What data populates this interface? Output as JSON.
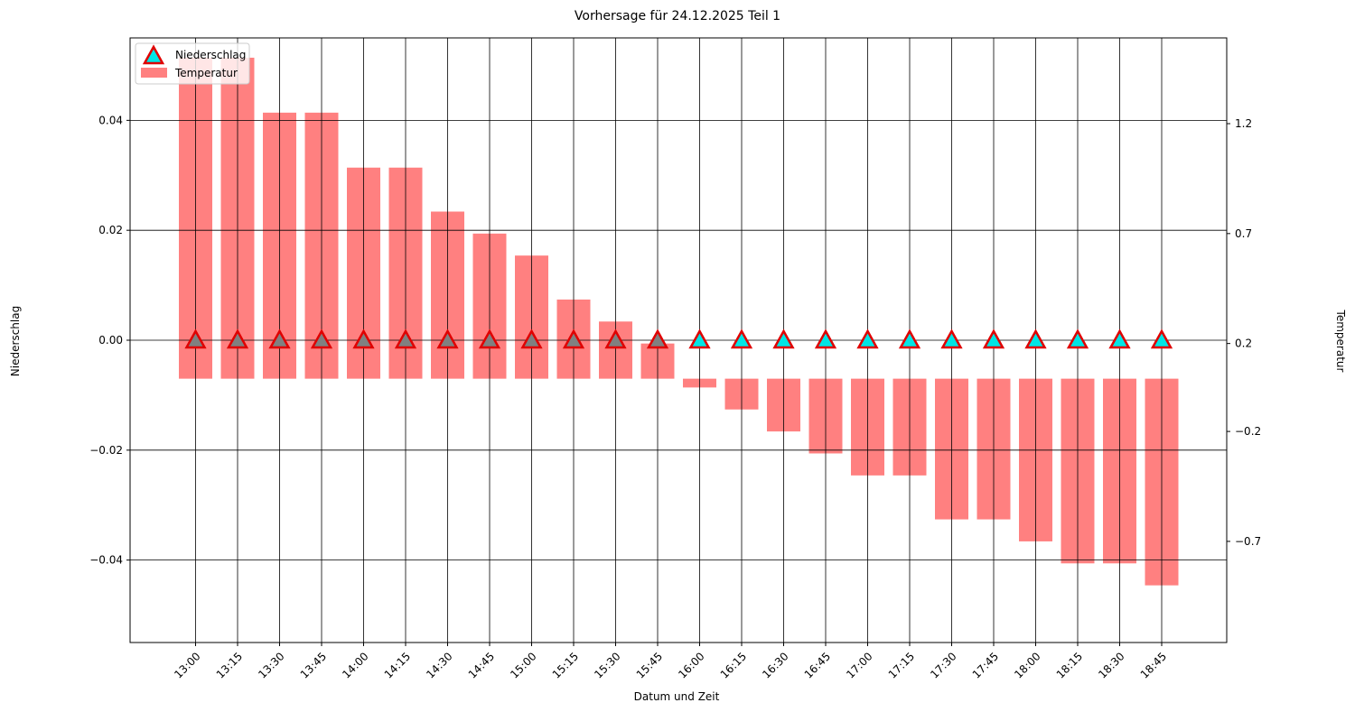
{
  "chart_data": {
    "type": "bar",
    "title": "Vorhersage für 24.12.2025 Teil 1",
    "xlabel": "Datum und Zeit",
    "ylabel_left": "Niederschlag",
    "ylabel_right": "Temperatur",
    "categories": [
      "13:00",
      "13:15",
      "13:30",
      "13:45",
      "14:00",
      "14:15",
      "14:30",
      "14:45",
      "15:00",
      "15:15",
      "15:30",
      "15:45",
      "16:00",
      "16:15",
      "16:30",
      "16:45",
      "17:00",
      "17:15",
      "17:30",
      "17:45",
      "18:00",
      "18:15",
      "18:30",
      "18:45"
    ],
    "left_axis": {
      "ylim": [
        -0.055,
        0.055
      ],
      "ticks": [
        0.04,
        0.02,
        0.0,
        -0.02,
        -0.04
      ],
      "tick_labels": [
        "0.04",
        "0.02",
        "0.00",
        "−0.02",
        "−0.04"
      ]
    },
    "right_axis": {
      "ylim": [
        -1.16,
        1.59
      ],
      "bar_base": 0.04,
      "ticks": [
        1.2,
        0.7,
        0.2,
        -0.2,
        -0.7
      ],
      "tick_labels": [
        "1.2",
        "0.7",
        "0.2",
        "−0.2",
        "−0.7"
      ]
    },
    "grid": true,
    "legend": "top-left",
    "series": [
      {
        "name": "Niederschlag",
        "kind": "triangle-marker",
        "axis": "left",
        "values": [
          0,
          0,
          0,
          0,
          0,
          0,
          0,
          0,
          0,
          0,
          0,
          0,
          0,
          0,
          0,
          0,
          0,
          0,
          0,
          0,
          0,
          0,
          0,
          0
        ]
      },
      {
        "name": "Temperatur",
        "kind": "bar",
        "axis": "right",
        "values": [
          1.5,
          1.5,
          1.25,
          1.25,
          1.0,
          1.0,
          0.8,
          0.7,
          0.6,
          0.4,
          0.3,
          0.2,
          0.0,
          -0.1,
          -0.2,
          -0.3,
          -0.4,
          -0.4,
          -0.6,
          -0.6,
          -0.7,
          -0.8,
          -0.8,
          -0.9
        ]
      }
    ],
    "colors": {
      "bar": "#ff8080",
      "marker_face": "#00e5e5",
      "marker_edge": "#e00000",
      "marker_face_overlap": "#808080"
    }
  }
}
